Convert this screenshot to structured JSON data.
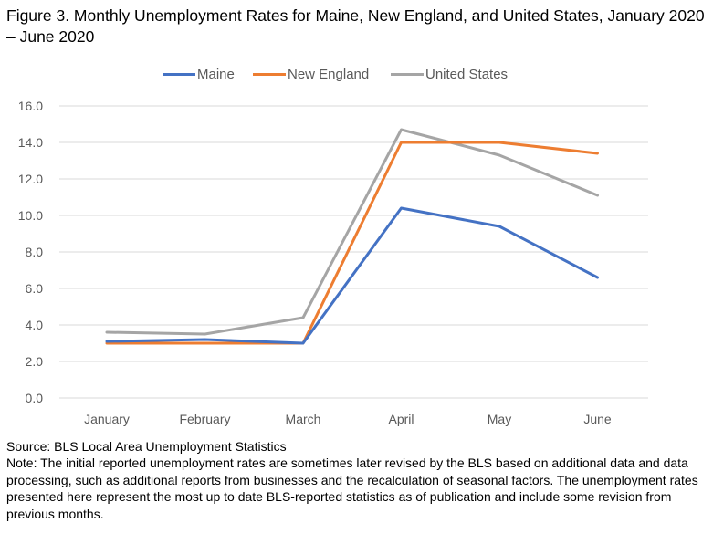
{
  "figure": {
    "title": "Figure 3. Monthly Unemployment Rates for Maine, New England, and United States, January 2020 – June 2020",
    "source": "Source: BLS Local Area Unemployment Statistics",
    "note": "Note: The initial reported unemployment rates are sometimes later revised by the BLS based on additional data and data processing, such as additional reports from businesses and the recalculation of seasonal factors. The unemployment rates presented here represent the most up to date BLS-reported statistics as of publication and include some revision from previous months."
  },
  "chart_data": {
    "type": "line",
    "categories": [
      "January",
      "February",
      "March",
      "April",
      "May",
      "June"
    ],
    "series": [
      {
        "name": "Maine",
        "color": "#4472C4",
        "values": [
          3.1,
          3.2,
          3.0,
          10.4,
          9.4,
          6.6
        ]
      },
      {
        "name": "New England",
        "color": "#ED7D31",
        "values": [
          3.0,
          3.0,
          3.0,
          14.0,
          14.0,
          13.4
        ]
      },
      {
        "name": "United States",
        "color": "#A5A5A5",
        "values": [
          3.6,
          3.5,
          4.4,
          14.7,
          13.3,
          11.1
        ]
      }
    ],
    "ylim": [
      0,
      16
    ],
    "yticks": [
      "0.0",
      "2.0",
      "4.0",
      "6.0",
      "8.0",
      "10.0",
      "12.0",
      "14.0",
      "16.0"
    ],
    "grid": true,
    "legend_position": "top"
  }
}
